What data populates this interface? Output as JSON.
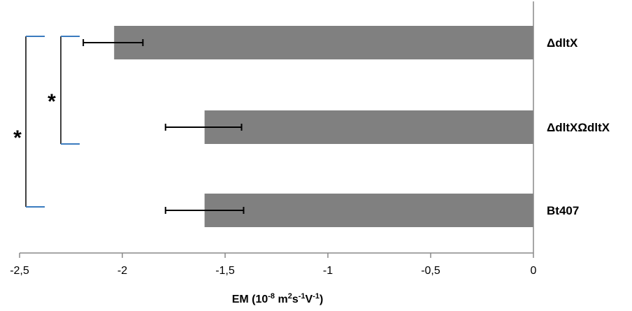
{
  "chart_data": {
    "type": "bar",
    "orientation": "horizontal",
    "categories": [
      "ΔdltX",
      "ΔdltXΩdltX",
      "Bt407"
    ],
    "values": [
      -2.04,
      -1.6,
      -1.6
    ],
    "error_left": [
      -2.19,
      -1.79,
      -1.79
    ],
    "error_right": [
      -1.9,
      -1.42,
      -1.41
    ],
    "xlim": [
      -2.5,
      0
    ],
    "xticks": [
      -2.5,
      -2,
      -1.5,
      -1,
      -0.5,
      0
    ],
    "xtick_labels": [
      "-2,5",
      "-2",
      "-1,5",
      "-1",
      "-0,5",
      "0"
    ],
    "xlabel": {
      "base": "EM (10",
      "exp1": "-8",
      "mid": " m",
      "exp2": "2",
      "mid2": "s",
      "exp3": "-1",
      "mid3": "V",
      "exp4": "-1",
      "end": ")"
    },
    "bar_color": "#808080",
    "significance": [
      {
        "from": "ΔdltX",
        "to": "ΔdltXΩdltX",
        "label": "*"
      },
      {
        "from": "ΔdltX",
        "to": "Bt407",
        "label": "*"
      }
    ],
    "bracket_color": "#3a7bbf"
  }
}
